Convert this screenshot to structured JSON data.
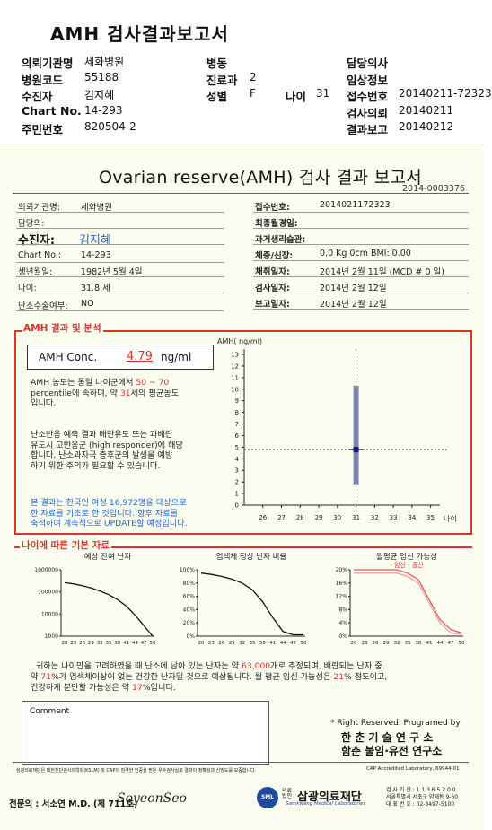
{
  "header": {
    "title": "AMH 검사결과보고서",
    "rows": [
      {
        "l1": "의뢰기관명",
        "v1": "세화병원",
        "l2": "병동",
        "v2": "",
        "l3": "",
        "v3": "",
        "l4": "담당의사",
        "v4": ""
      },
      {
        "l1": "병원코드",
        "v1": "55188",
        "l2": "진료과",
        "v2": "2",
        "l3": "",
        "v3": "",
        "l4": "임상정보",
        "v4": ""
      },
      {
        "l1": "수진자",
        "v1": "김지혜",
        "l2": "성별",
        "v2": "F",
        "l3": "나이",
        "v3": "31",
        "l4": "접수번호",
        "v4": "20140211-72323"
      },
      {
        "l1": "Chart No.",
        "v1": "14-293",
        "l2": "",
        "v2": "",
        "l3": "",
        "v3": "",
        "l4": "검사의뢰",
        "v4": "20140211"
      },
      {
        "l1": "주민번호",
        "v1": "820504-2",
        "l2": "",
        "v2": "",
        "l3": "",
        "v3": "",
        "l4": "결과보고",
        "v4": "20140212"
      }
    ]
  },
  "report": {
    "title": "Ovarian reserve(AMH) 검사 결과 보고서",
    "id": "2014-0003376",
    "left": [
      {
        "label": "의뢰기관명:",
        "value": "세화병원"
      },
      {
        "label": "담당의:",
        "value": ""
      },
      {
        "label": "수진자:",
        "value": "김지혜"
      },
      {
        "label": "Chart No.:",
        "value": "14-293"
      },
      {
        "label": "생년월일:",
        "value": "1982년 5월 4일"
      },
      {
        "label": "나이:",
        "value": "31.8 세"
      },
      {
        "label": "난소수술여부:",
        "value": "NO"
      }
    ],
    "right": [
      {
        "label": "접수번호:",
        "value": "2014021172323"
      },
      {
        "label": "최종월경일:",
        "value": ""
      },
      {
        "label": "과거생리습관:",
        "value": ""
      },
      {
        "label": "체중/신장:",
        "value": "0.0 Kg        0cm     BMI:   0.00"
      },
      {
        "label": "채취일자:",
        "value": "2014년 2월 11일   (MCD # 0 일)"
      },
      {
        "label": "검사일자:",
        "value": "2014년 2월 12일"
      },
      {
        "label": "보고일자:",
        "value": "2014년 2월 12일"
      }
    ]
  },
  "analysis": {
    "section_title": "AMH 결과 및 분석",
    "conc_label": "AMH Conc.",
    "conc_value": "4.79",
    "conc_unit": "ng/ml",
    "p1a": "AMH 농도는 동일 나이군에서",
    "p1_range": "50 ~  70",
    "p1b": "percentile에 속하며,  약",
    "p1_age": "31",
    "p1c": "세의 평균농도",
    "p1d": "입니다.",
    "p2": [
      "난소반응 예측 결과 배란유도 또는 과배란",
      "유도시 고반응군 (high responder)에 해당",
      "합니다. 난소과자극 증후군의 발생을 예방",
      "하기 위한 주의가 필요할 수 있습니다."
    ],
    "p3": [
      "본 결과는 한국인 여성 16,972명을 대상으로",
      "한 자료를 기초로 한 것입니다. 향후 자료를",
      "축적하여 계속적으로 UPDATE할 예정입니다."
    ]
  },
  "chart_data": [
    {
      "type": "scatter",
      "ylabel": "AMH( ng/ml)",
      "xlabel": "나이",
      "ylim": [
        0,
        13
      ],
      "xlim": [
        25,
        35.5
      ],
      "x_ticks": [
        26,
        27,
        28,
        29,
        30,
        31,
        32,
        33,
        34,
        35
      ],
      "y_ticks": [
        0,
        1,
        2,
        3,
        4,
        5,
        6,
        7,
        8,
        9,
        10,
        11,
        12,
        13
      ],
      "point": {
        "x": 31,
        "y": 4.79
      },
      "range_bar": {
        "x": 31,
        "low": 1.8,
        "high": 10.3
      },
      "reference_line_y": 4.79
    },
    {
      "type": "line",
      "title": "예상 잔여 난자",
      "x_ticks": [
        "20",
        "23",
        "26",
        "29",
        "32",
        "35",
        "38",
        "41",
        "44",
        "47",
        "50"
      ],
      "y_ticks": [
        "1000000",
        "100000",
        "10000",
        "1000"
      ],
      "log_scale": true,
      "x": [
        20,
        23,
        26,
        29,
        32,
        35,
        38,
        41,
        44,
        47,
        50
      ],
      "y": [
        260000,
        230000,
        190000,
        150000,
        110000,
        75000,
        45000,
        23000,
        9000,
        3000,
        1000
      ]
    },
    {
      "type": "line",
      "title": "염색체 정상 난자 비율",
      "x_ticks": [
        "20",
        "23",
        "26",
        "29",
        "32",
        "35",
        "38",
        "41",
        "44",
        "47",
        "50"
      ],
      "y_ticks": [
        "100%",
        "80%",
        "60%",
        "40%",
        "20%",
        "0%"
      ],
      "x": [
        20,
        23,
        26,
        29,
        32,
        35,
        38,
        41,
        44,
        47,
        50
      ],
      "y": [
        95,
        93,
        90,
        86,
        80,
        70,
        52,
        28,
        7,
        2,
        2
      ]
    },
    {
      "type": "line",
      "title": "월평균 임신 가능성",
      "series": [
        {
          "name": "임신",
          "values": [
            20,
            20,
            20,
            20,
            20,
            19,
            17,
            11,
            5,
            2,
            1
          ]
        },
        {
          "name": "출산",
          "values": [
            19,
            19,
            19,
            19,
            19,
            18,
            16,
            10,
            4,
            1,
            0.5
          ]
        }
      ],
      "x": [
        20,
        23,
        26,
        29,
        32,
        35,
        38,
        41,
        44,
        47,
        50
      ],
      "x_ticks": [
        "20",
        "23",
        "26",
        "29",
        "32",
        "35",
        "38",
        "41",
        "44",
        "47",
        "50"
      ],
      "y_ticks": [
        "20%",
        "16%",
        "12%",
        "8%",
        "4%",
        "0%"
      ],
      "legend_text": "- 임신 -  출산"
    }
  ],
  "basic": {
    "section_title": "나이에 따른 기본 자료",
    "s1": "귀하는 나이만을 고려하였을 때 난소에 남아 있는 난자는 약",
    "eggs": "63,000",
    "s2": "개로 추정되며, 배란되는 난자 중",
    "s3": "약",
    "normal": "71",
    "s4": "%가 염색체이상이 없는 건강한 난자일 것으로 예상됩니다. 월 평균 임신 가능성은",
    "preg": "21",
    "s5": "% 정도이고,",
    "s6": "건강하게 분만할 가능성은 약",
    "birth": "17",
    "s7": "%입니다."
  },
  "comment": {
    "label": "Comment"
  },
  "credit": {
    "line1": "* Right Reserved. Programed by",
    "line2": "한 춘  기 술  연 구 소",
    "line3": "함춘 불임·유전 연구소"
  },
  "footer": {
    "cert": "삼광의료재단은 대한진단검사의학회(KSLM) 및 CAP의 엄격한 인증을 받은 우수검사실로 결과의 정확성과 신빙도를 보증합니다.",
    "cap": "CAP  Accredited  Laboratory,  69944-01",
    "doctor": "전문의 : 서소연 M.D. (제 711호)",
    "signature": "SoyeonSeo",
    "foundation_small": "의료\n법인",
    "foundation": "삼광의료재단",
    "foundation_en": "Samkwang Medical Laboratories",
    "logo_text": "SML",
    "info1": "검 사 기 관 : 1 1 3 6 5 2 0 0",
    "info2": "서울특별시 서초구 양재동 9-60",
    "info3": "대 표 번 호 : 02-3497-5100"
  }
}
